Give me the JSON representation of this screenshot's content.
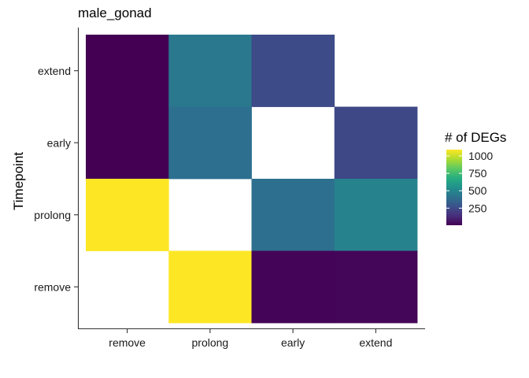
{
  "chart_data": {
    "type": "heatmap",
    "title": "male_gonad",
    "xlabel": "",
    "ylabel": "Timepoint",
    "x_categories": [
      "remove",
      "prolong",
      "early",
      "extend"
    ],
    "y_categories": [
      "remove",
      "prolong",
      "early",
      "extend"
    ],
    "cells": [
      {
        "x": "remove",
        "y": "extend",
        "value": 5
      },
      {
        "x": "prolong",
        "y": "extend",
        "value": 440
      },
      {
        "x": "early",
        "y": "extend",
        "value": 250
      },
      {
        "x": "remove",
        "y": "early",
        "value": 5
      },
      {
        "x": "prolong",
        "y": "early",
        "value": 400
      },
      {
        "x": "extend",
        "y": "early",
        "value": 240
      },
      {
        "x": "remove",
        "y": "prolong",
        "value": 1090
      },
      {
        "x": "early",
        "y": "prolong",
        "value": 400
      },
      {
        "x": "extend",
        "y": "prolong",
        "value": 480
      },
      {
        "x": "prolong",
        "y": "remove",
        "value": 1090
      },
      {
        "x": "early",
        "y": "remove",
        "value": 15
      },
      {
        "x": "extend",
        "y": "remove",
        "value": 20
      }
    ],
    "legend": {
      "title": "# of DEGs",
      "ticks": [
        250,
        500,
        750,
        1000
      ],
      "range": [
        5,
        1090
      ],
      "placement": "right"
    },
    "colormap": "viridis",
    "grid": false
  }
}
